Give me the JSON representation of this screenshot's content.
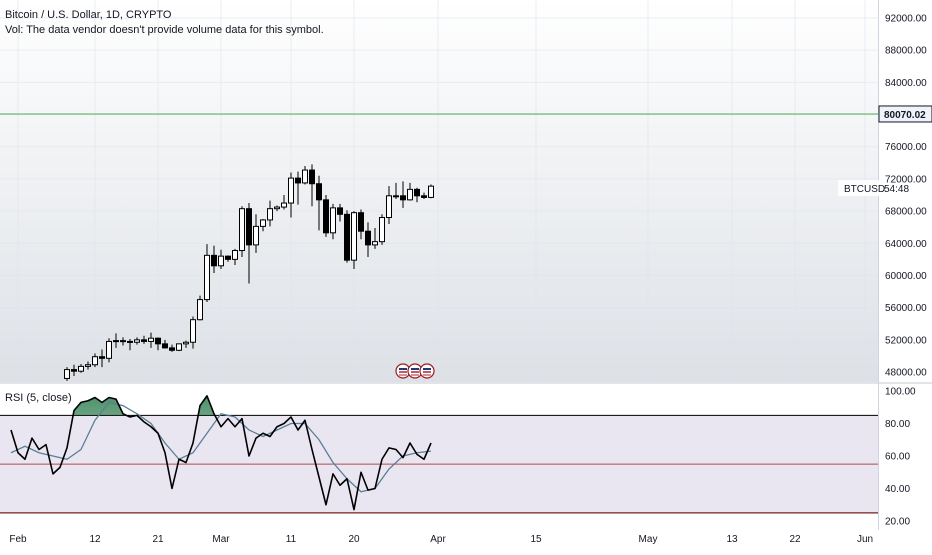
{
  "header": {
    "symbol_title": "Bitcoin / U.S. Dollar, 1D, CRYPTO",
    "vol_note": "Vol: The data vendor doesn't provide volume data for this symbol."
  },
  "price_tag": {
    "symbol": "BTCUSD",
    "countdown": "54:48"
  },
  "horizontal_line": {
    "value": 80070.02,
    "label": "80070.02",
    "color": "#4caf50"
  },
  "rsi_panel": {
    "title": "RSI (5, close)",
    "upper_band": 85,
    "middle_band": 55,
    "lower_band": 25,
    "line_color": "#000000",
    "ma_color": "#5b7f95",
    "band_fill_color": "#e9e6f2",
    "overbought_fill_color": "#2e7d4f"
  },
  "colors": {
    "candle_up": "#ffffff",
    "candle_down": "#000000",
    "candle_border": "#000000",
    "grid_line": "#e0e3eb",
    "background_top": "#ffffff",
    "background_bottom": "#dde1e6"
  },
  "event_markers": [
    "flag-icon",
    "flag-icon",
    "flag-icon"
  ],
  "chart_data": [
    {
      "type": "candlestick",
      "title": "Bitcoin / U.S. Dollar, 1D, CRYPTO",
      "ylim": [
        47000,
        93000
      ],
      "y_ticks": [
        "92000.00",
        "88000.00",
        "84000.00",
        "80000.00",
        "76000.00",
        "72000.00",
        "68000.00",
        "64000.00",
        "60000.00",
        "56000.00",
        "52000.00",
        "48000.00"
      ],
      "y_tick_values": [
        92000,
        88000,
        84000,
        80000,
        76000,
        72000,
        68000,
        64000,
        60000,
        56000,
        52000,
        48000
      ],
      "x_ticks": [
        "Feb",
        "12",
        "21",
        "Mar",
        "11",
        "20",
        "Apr",
        "15",
        "May",
        "13",
        "22",
        "Jun"
      ],
      "x_tick_dates": [
        "2024-02-01",
        "2024-02-12",
        "2024-02-21",
        "2024-03-01",
        "2024-03-11",
        "2024-03-20",
        "2024-04-01",
        "2024-04-15",
        "2024-05-01",
        "2024-05-13",
        "2024-05-22",
        "2024-06-01"
      ],
      "candles": [
        {
          "date": "2024-02-08",
          "o": 47200,
          "h": 48600,
          "l": 46900,
          "c": 48300
        },
        {
          "date": "2024-02-09",
          "o": 48300,
          "h": 48900,
          "l": 47500,
          "c": 48100
        },
        {
          "date": "2024-02-10",
          "o": 48100,
          "h": 49000,
          "l": 47900,
          "c": 48700
        },
        {
          "date": "2024-02-11",
          "o": 48700,
          "h": 49300,
          "l": 48300,
          "c": 48900
        },
        {
          "date": "2024-02-12",
          "o": 48900,
          "h": 50300,
          "l": 48600,
          "c": 49900
        },
        {
          "date": "2024-02-13",
          "o": 49900,
          "h": 50800,
          "l": 48600,
          "c": 49700
        },
        {
          "date": "2024-02-14",
          "o": 49700,
          "h": 52200,
          "l": 49200,
          "c": 51800
        },
        {
          "date": "2024-02-15",
          "o": 51800,
          "h": 52800,
          "l": 51000,
          "c": 51900
        },
        {
          "date": "2024-02-16",
          "o": 51900,
          "h": 52300,
          "l": 51300,
          "c": 51800
        },
        {
          "date": "2024-02-17",
          "o": 51800,
          "h": 52100,
          "l": 50700,
          "c": 51700
        },
        {
          "date": "2024-02-18",
          "o": 51700,
          "h": 52300,
          "l": 51400,
          "c": 52000
        },
        {
          "date": "2024-02-19",
          "o": 52000,
          "h": 52500,
          "l": 51500,
          "c": 51800
        },
        {
          "date": "2024-02-20",
          "o": 51800,
          "h": 52900,
          "l": 51000,
          "c": 52200
        },
        {
          "date": "2024-02-21",
          "o": 52200,
          "h": 52300,
          "l": 50700,
          "c": 51500
        },
        {
          "date": "2024-02-22",
          "o": 51500,
          "h": 52000,
          "l": 50900,
          "c": 51000
        },
        {
          "date": "2024-02-23",
          "o": 51000,
          "h": 51400,
          "l": 50500,
          "c": 50700
        },
        {
          "date": "2024-02-24",
          "o": 50700,
          "h": 51500,
          "l": 50600,
          "c": 51500
        },
        {
          "date": "2024-02-25",
          "o": 51500,
          "h": 51900,
          "l": 51000,
          "c": 51700
        },
        {
          "date": "2024-02-26",
          "o": 51700,
          "h": 54900,
          "l": 50900,
          "c": 54500
        },
        {
          "date": "2024-02-27",
          "o": 54500,
          "h": 57500,
          "l": 54400,
          "c": 57000
        },
        {
          "date": "2024-02-28",
          "o": 57000,
          "h": 63900,
          "l": 56700,
          "c": 62500
        },
        {
          "date": "2024-02-29",
          "o": 62500,
          "h": 63700,
          "l": 60300,
          "c": 61200
        },
        {
          "date": "2024-03-01",
          "o": 61200,
          "h": 63200,
          "l": 60800,
          "c": 62400
        },
        {
          "date": "2024-03-02",
          "o": 62400,
          "h": 62500,
          "l": 61700,
          "c": 62000
        },
        {
          "date": "2024-03-03",
          "o": 62000,
          "h": 63300,
          "l": 61300,
          "c": 63100
        },
        {
          "date": "2024-03-04",
          "o": 63100,
          "h": 68600,
          "l": 62300,
          "c": 68300
        },
        {
          "date": "2024-03-05",
          "o": 68300,
          "h": 69000,
          "l": 59000,
          "c": 63800
        },
        {
          "date": "2024-03-06",
          "o": 63800,
          "h": 67600,
          "l": 62800,
          "c": 66100
        },
        {
          "date": "2024-03-07",
          "o": 66100,
          "h": 67000,
          "l": 65500,
          "c": 66900
        },
        {
          "date": "2024-03-08",
          "o": 66900,
          "h": 69300,
          "l": 66100,
          "c": 68300
        },
        {
          "date": "2024-03-09",
          "o": 68300,
          "h": 68700,
          "l": 68000,
          "c": 68500
        },
        {
          "date": "2024-03-10",
          "o": 68500,
          "h": 70000,
          "l": 68200,
          "c": 69000
        },
        {
          "date": "2024-03-11",
          "o": 69000,
          "h": 72800,
          "l": 67200,
          "c": 72100
        },
        {
          "date": "2024-03-12",
          "o": 72100,
          "h": 72900,
          "l": 68800,
          "c": 71500
        },
        {
          "date": "2024-03-13",
          "o": 71500,
          "h": 73600,
          "l": 71300,
          "c": 73100
        },
        {
          "date": "2024-03-14",
          "o": 73100,
          "h": 73800,
          "l": 68600,
          "c": 71400
        },
        {
          "date": "2024-03-15",
          "o": 71400,
          "h": 72400,
          "l": 65600,
          "c": 69400
        },
        {
          "date": "2024-03-16",
          "o": 69400,
          "h": 70000,
          "l": 64800,
          "c": 65300
        },
        {
          "date": "2024-03-17",
          "o": 65300,
          "h": 68900,
          "l": 64500,
          "c": 68400
        },
        {
          "date": "2024-03-18",
          "o": 68400,
          "h": 68900,
          "l": 66700,
          "c": 67600
        },
        {
          "date": "2024-03-19",
          "o": 67600,
          "h": 68100,
          "l": 61600,
          "c": 61900
        },
        {
          "date": "2024-03-20",
          "o": 61900,
          "h": 68000,
          "l": 60800,
          "c": 67800
        },
        {
          "date": "2024-03-21",
          "o": 67800,
          "h": 68200,
          "l": 64500,
          "c": 65500
        },
        {
          "date": "2024-03-22",
          "o": 65500,
          "h": 66600,
          "l": 62300,
          "c": 63800
        },
        {
          "date": "2024-03-23",
          "o": 63800,
          "h": 65900,
          "l": 63300,
          "c": 64200
        },
        {
          "date": "2024-03-24",
          "o": 64200,
          "h": 67600,
          "l": 63800,
          "c": 67200
        },
        {
          "date": "2024-03-25",
          "o": 67200,
          "h": 71100,
          "l": 66400,
          "c": 69900
        },
        {
          "date": "2024-03-26",
          "o": 69900,
          "h": 71500,
          "l": 69500,
          "c": 69900
        },
        {
          "date": "2024-03-27",
          "o": 69900,
          "h": 71700,
          "l": 68400,
          "c": 69400
        },
        {
          "date": "2024-03-28",
          "o": 69400,
          "h": 71500,
          "l": 69300,
          "c": 70700
        },
        {
          "date": "2024-03-29",
          "o": 70700,
          "h": 70900,
          "l": 69100,
          "c": 69900
        },
        {
          "date": "2024-03-30",
          "o": 69900,
          "h": 70300,
          "l": 69500,
          "c": 69700
        },
        {
          "date": "2024-03-31",
          "o": 69700,
          "h": 71300,
          "l": 69600,
          "c": 71100
        }
      ],
      "last_price_label": "BTCUSD",
      "countdown": "54:48",
      "grid": true
    },
    {
      "type": "line",
      "title": "RSI (5, close)",
      "ylim": [
        17,
        102
      ],
      "y_ticks": [
        "100.00",
        "80.00",
        "60.00",
        "40.00",
        "20.00"
      ],
      "y_tick_values": [
        100,
        80,
        60,
        40,
        20
      ],
      "bands": {
        "upper": 85,
        "middle": 55,
        "lower": 25
      },
      "series": [
        {
          "role": "rsi",
          "x": [
            "2024-01-31",
            "2024-02-01",
            "2024-02-02",
            "2024-02-03",
            "2024-02-04",
            "2024-02-05",
            "2024-02-06",
            "2024-02-07",
            "2024-02-08",
            "2024-02-09",
            "2024-02-10",
            "2024-02-11",
            "2024-02-12",
            "2024-02-13",
            "2024-02-14",
            "2024-02-15",
            "2024-02-16",
            "2024-02-17",
            "2024-02-18",
            "2024-02-19",
            "2024-02-20",
            "2024-02-21",
            "2024-02-22",
            "2024-02-23",
            "2024-02-24",
            "2024-02-25",
            "2024-02-26",
            "2024-02-27",
            "2024-02-28",
            "2024-02-29",
            "2024-03-01",
            "2024-03-02",
            "2024-03-03",
            "2024-03-04",
            "2024-03-05",
            "2024-03-06",
            "2024-03-07",
            "2024-03-08",
            "2024-03-09",
            "2024-03-10",
            "2024-03-11",
            "2024-03-12",
            "2024-03-13",
            "2024-03-14",
            "2024-03-15",
            "2024-03-16",
            "2024-03-17",
            "2024-03-18",
            "2024-03-19",
            "2024-03-20",
            "2024-03-21",
            "2024-03-22",
            "2024-03-23",
            "2024-03-24",
            "2024-03-25",
            "2024-03-26",
            "2024-03-27",
            "2024-03-28",
            "2024-03-29",
            "2024-03-30",
            "2024-03-31"
          ],
          "values": [
            76,
            62,
            58,
            71,
            64,
            67,
            49,
            53,
            65,
            88,
            93,
            94,
            96,
            93,
            96,
            95,
            86,
            84,
            85,
            81,
            78,
            74,
            62,
            40,
            58,
            56,
            68,
            91,
            97,
            86,
            78,
            83,
            78,
            83,
            60,
            71,
            74,
            72,
            78,
            80,
            84,
            76,
            82,
            64,
            47,
            30,
            49,
            42,
            46,
            27,
            50,
            39,
            40,
            58,
            65,
            64,
            59,
            68,
            61,
            58,
            68
          ]
        },
        {
          "role": "rsi-ma",
          "x": [
            "2024-01-31",
            "2024-02-02",
            "2024-02-04",
            "2024-02-06",
            "2024-02-08",
            "2024-02-10",
            "2024-02-12",
            "2024-02-14",
            "2024-02-16",
            "2024-02-18",
            "2024-02-20",
            "2024-02-22",
            "2024-02-24",
            "2024-02-26",
            "2024-02-28",
            "2024-03-01",
            "2024-03-03",
            "2024-03-05",
            "2024-03-07",
            "2024-03-09",
            "2024-03-11",
            "2024-03-13",
            "2024-03-15",
            "2024-03-17",
            "2024-03-19",
            "2024-03-21",
            "2024-03-23",
            "2024-03-25",
            "2024-03-27",
            "2024-03-29",
            "2024-03-31"
          ],
          "values": [
            62,
            66,
            62,
            60,
            58,
            64,
            82,
            93,
            91,
            86,
            80,
            68,
            58,
            62,
            74,
            86,
            84,
            76,
            72,
            76,
            80,
            80,
            70,
            56,
            46,
            38,
            40,
            52,
            60,
            62,
            63
          ]
        }
      ]
    }
  ]
}
